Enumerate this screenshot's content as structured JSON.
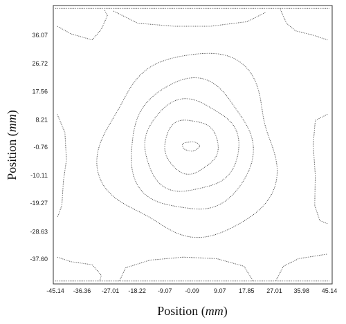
{
  "chart_data": {
    "type": "contour",
    "title": "",
    "xlabel": {
      "text": "Position",
      "unit": "mm"
    },
    "ylabel": {
      "text": "Position",
      "unit": "mm"
    },
    "xlim": [
      -45.14,
      45.14
    ],
    "ylim": [
      -45.14,
      45.14
    ],
    "grid": false,
    "legend": "none",
    "x_ticks": [
      -45.14,
      -36.36,
      -27.01,
      -18.22,
      -9.07,
      -0.09,
      9.07,
      17.85,
      27.01,
      35.98,
      45.14
    ],
    "x_tick_labels": [
      "-45.14",
      "-36.36",
      "-27.01",
      "-18.22",
      "-9.07",
      "-0.09",
      "9.07",
      "17.85",
      "27.01",
      "35.98",
      "45.14"
    ],
    "y_ticks": [
      36.07,
      26.72,
      17.56,
      8.21,
      -0.76,
      -10.11,
      -19.27,
      -28.63,
      -37.6
    ],
    "y_tick_labels": [
      "36.07",
      "26.72",
      "17.56",
      "8.21",
      "-0.76",
      "-10.11",
      "-19.27",
      "-28.63",
      "-37.60"
    ],
    "center": {
      "x": -0.5,
      "y": -0.5
    },
    "contour_color": "#555555",
    "contours": [
      {
        "name": "",
        "rx": 2.8,
        "ry": 1.5,
        "wobble": 0.05
      },
      {
        "name": "",
        "rx": 8.8,
        "ry": 8.8,
        "wobble": 0.04
      },
      {
        "name": "",
        "rx": 15.5,
        "ry": 15.0,
        "wobble": 0.04
      },
      {
        "name": "",
        "rx": 20.0,
        "ry": 21.5,
        "wobble": 0.04
      },
      {
        "name": "",
        "rx": 28.5,
        "ry": 30.0,
        "wobble": 0.07
      }
    ],
    "corner_contours": [
      {
        "points": [
          [
            -44.5,
            39.0
          ],
          [
            -40.0,
            36.5
          ],
          [
            -33.0,
            34.5
          ],
          [
            -30.0,
            38.0
          ],
          [
            -28.0,
            42.5
          ],
          [
            -29.0,
            44.5
          ]
        ]
      },
      {
        "points": [
          [
            -26.0,
            44.0
          ],
          [
            -18.0,
            40.0
          ],
          [
            -6.0,
            39.0
          ],
          [
            6.0,
            39.0
          ],
          [
            18.0,
            40.5
          ],
          [
            24.0,
            43.5
          ]
        ]
      },
      {
        "points": [
          [
            29.0,
            44.5
          ],
          [
            31.0,
            40.0
          ],
          [
            34.0,
            37.5
          ],
          [
            40.0,
            36.0
          ],
          [
            44.5,
            34.5
          ]
        ]
      },
      {
        "points": [
          [
            -44.5,
            -37.0
          ],
          [
            -40.0,
            -38.5
          ],
          [
            -33.0,
            -39.5
          ],
          [
            -30.0,
            -43.0
          ],
          [
            -30.5,
            -44.8
          ]
        ]
      },
      {
        "points": [
          [
            -24.0,
            -44.8
          ],
          [
            -22.0,
            -40.5
          ],
          [
            -14.0,
            -38.0
          ],
          [
            -3.0,
            -37.0
          ],
          [
            8.0,
            -37.5
          ],
          [
            17.0,
            -40.0
          ],
          [
            20.0,
            -44.8
          ]
        ]
      },
      {
        "points": [
          [
            27.5,
            -44.8
          ],
          [
            30.0,
            -40.0
          ],
          [
            35.0,
            -37.5
          ],
          [
            44.5,
            -36.0
          ]
        ]
      },
      {
        "points": [
          [
            44.5,
            10.0
          ],
          [
            40.5,
            8.0
          ],
          [
            39.8,
            0.0
          ],
          [
            40.5,
            -10.0
          ],
          [
            40.3,
            -20.0
          ],
          [
            42.0,
            -25.0
          ],
          [
            44.5,
            -26.0
          ]
        ]
      },
      {
        "points": [
          [
            -44.5,
            10.0
          ],
          [
            -42.0,
            4.0
          ],
          [
            -41.5,
            -5.0
          ],
          [
            -42.5,
            -12.0
          ],
          [
            -43.0,
            -20.0
          ],
          [
            -44.5,
            -24.0
          ]
        ]
      }
    ]
  }
}
